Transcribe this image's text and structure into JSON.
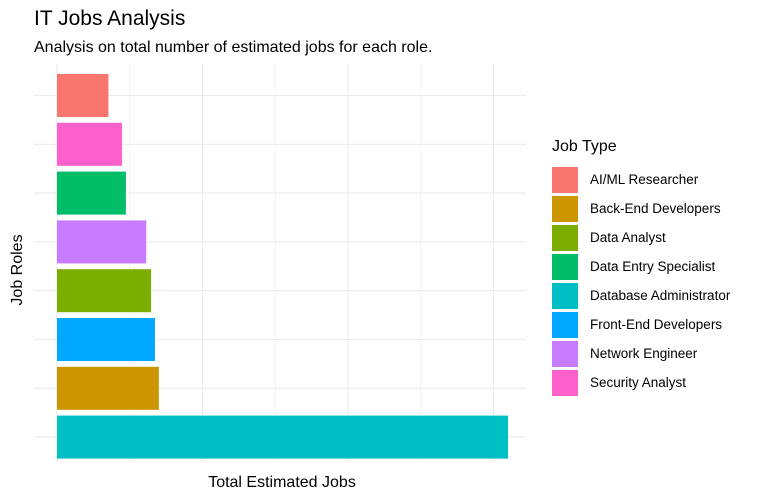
{
  "chart_data": {
    "type": "bar",
    "orientation": "horizontal",
    "title": "IT Jobs Analysis",
    "subtitle": "Analysis on total number of estimated jobs for each role.",
    "xlabel": "Total Estimated Jobs",
    "ylabel": "Job Roles",
    "x_tick_labels_shown": false,
    "y_tick_labels_shown": false,
    "grid": true,
    "legend_position": "right",
    "legend_title": "Job Type",
    "categories": [
      "AI/ML Researcher",
      "Security Analyst",
      "Data Entry Specialist",
      "Network Engineer",
      "Data Analyst",
      "Front-End Developers",
      "Back-End Developers",
      "Database Administrator"
    ],
    "values": [
      5.3,
      6.7,
      7.1,
      9.2,
      9.7,
      10.1,
      10.5,
      46.5
    ],
    "xlim": [
      0,
      47
    ],
    "colors": {
      "AI/ML Researcher": "#F8766D",
      "Back-End Developers": "#CD9600",
      "Data Analyst": "#7CAE00",
      "Data Entry Specialist": "#00BE67",
      "Database Administrator": "#00BFC4",
      "Front-End Developers": "#00A9FF",
      "Network Engineer": "#C77CFF",
      "Security Analyst": "#FF61CC"
    },
    "legend": [
      "AI/ML Researcher",
      "Back-End Developers",
      "Data Analyst",
      "Data Entry Specialist",
      "Database Administrator",
      "Front-End Developers",
      "Network Engineer",
      "Security Analyst"
    ]
  }
}
